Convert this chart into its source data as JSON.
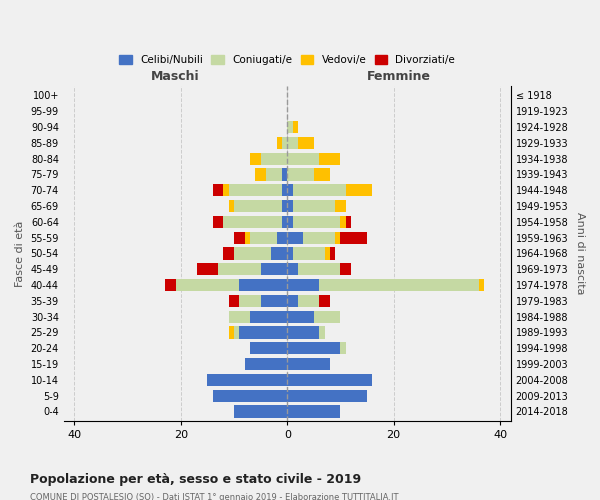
{
  "age_groups": [
    "0-4",
    "5-9",
    "10-14",
    "15-19",
    "20-24",
    "25-29",
    "30-34",
    "35-39",
    "40-44",
    "45-49",
    "50-54",
    "55-59",
    "60-64",
    "65-69",
    "70-74",
    "75-79",
    "80-84",
    "85-89",
    "90-94",
    "95-99",
    "100+"
  ],
  "birth_years": [
    "2014-2018",
    "2009-2013",
    "2004-2008",
    "1999-2003",
    "1994-1998",
    "1989-1993",
    "1984-1988",
    "1979-1983",
    "1974-1978",
    "1969-1973",
    "1964-1968",
    "1959-1963",
    "1954-1958",
    "1949-1953",
    "1944-1948",
    "1939-1943",
    "1934-1938",
    "1929-1933",
    "1924-1928",
    "1919-1923",
    "≤ 1918"
  ],
  "maschi": {
    "celibi": [
      10,
      14,
      15,
      8,
      7,
      9,
      7,
      5,
      9,
      5,
      3,
      2,
      1,
      1,
      1,
      1,
      0,
      0,
      0,
      0,
      0
    ],
    "coniugati": [
      0,
      0,
      0,
      0,
      0,
      1,
      4,
      4,
      12,
      8,
      7,
      5,
      11,
      9,
      10,
      3,
      5,
      1,
      0,
      0,
      0
    ],
    "vedovi": [
      0,
      0,
      0,
      0,
      0,
      1,
      0,
      0,
      0,
      0,
      0,
      1,
      0,
      1,
      1,
      2,
      2,
      1,
      0,
      0,
      0
    ],
    "divorziati": [
      0,
      0,
      0,
      0,
      0,
      0,
      0,
      2,
      2,
      4,
      2,
      2,
      2,
      0,
      2,
      0,
      0,
      0,
      0,
      0,
      0
    ]
  },
  "femmine": {
    "nubili": [
      10,
      15,
      16,
      8,
      10,
      6,
      5,
      2,
      6,
      2,
      1,
      3,
      1,
      1,
      1,
      0,
      0,
      0,
      0,
      0,
      0
    ],
    "coniugate": [
      0,
      0,
      0,
      0,
      1,
      1,
      5,
      4,
      30,
      8,
      6,
      6,
      9,
      8,
      10,
      5,
      6,
      2,
      1,
      0,
      0
    ],
    "vedove": [
      0,
      0,
      0,
      0,
      0,
      0,
      0,
      0,
      1,
      0,
      1,
      1,
      1,
      2,
      5,
      3,
      4,
      3,
      1,
      0,
      0
    ],
    "divorziate": [
      0,
      0,
      0,
      0,
      0,
      0,
      0,
      2,
      0,
      2,
      1,
      5,
      1,
      0,
      0,
      0,
      0,
      0,
      0,
      0,
      0
    ]
  },
  "color_celibi": "#4472c4",
  "color_coniugati": "#c5d9a3",
  "color_vedovi": "#ffc000",
  "color_divorziati": "#cc0000",
  "xlim": [
    -42,
    42
  ],
  "xticks": [
    -40,
    -20,
    0,
    20,
    40
  ],
  "xticklabels": [
    "40",
    "20",
    "0",
    "20",
    "40"
  ],
  "title": "Popolazione per età, sesso e stato civile - 2019",
  "subtitle": "COMUNE DI POSTALESIO (SO) - Dati ISTAT 1° gennaio 2019 - Elaborazione TUTTITALIA.IT",
  "ylabel_left": "Fasce di età",
  "ylabel_right": "Anni di nascita",
  "label_maschi": "Maschi",
  "label_femmine": "Femmine",
  "legend_celibi": "Celibi/Nubili",
  "legend_coniugati": "Coniugati/e",
  "legend_vedovi": "Vedovi/e",
  "legend_divorziati": "Divorziati/e",
  "background_color": "#f0f0f0",
  "grid_color": "#cccccc"
}
